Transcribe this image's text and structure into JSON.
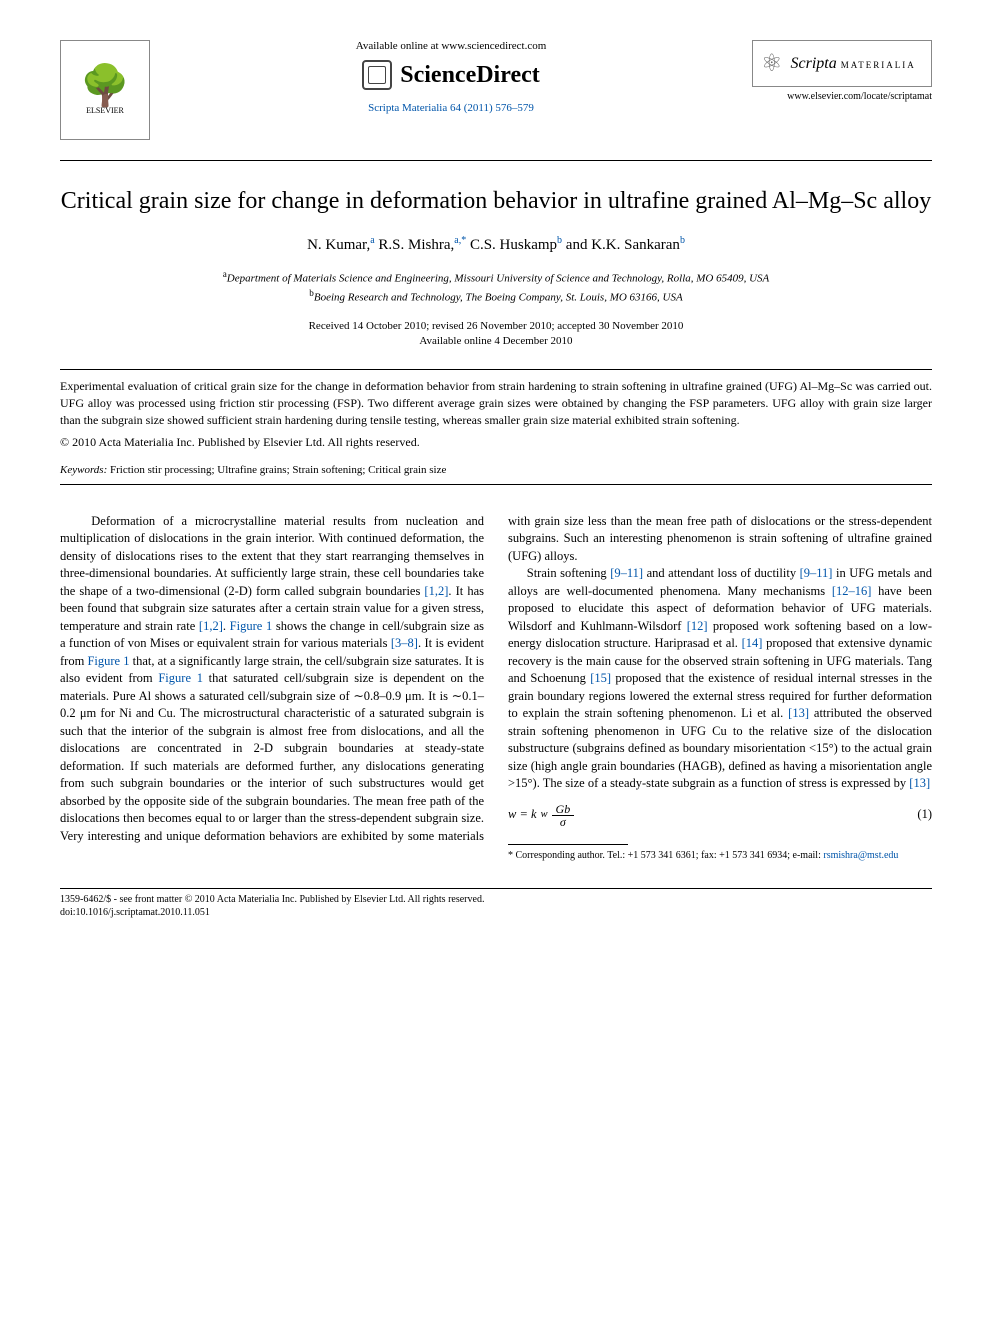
{
  "header": {
    "available_online": "Available online at www.sciencedirect.com",
    "sciencedirect": "ScienceDirect",
    "journal_citation": "Scripta Materialia 64 (2011) 576–579",
    "elsevier_label": "ELSEVIER",
    "scripta_name": "Scripta",
    "scripta_sub": "MATERIALIA",
    "locate_url": "www.elsevier.com/locate/scriptamat"
  },
  "title": "Critical grain size for change in deformation behavior in ultrafine grained Al–Mg–Sc alloy",
  "authors": {
    "a1": "N. Kumar,",
    "a1_sup": "a",
    "a2": " R.S. Mishra,",
    "a2_sup": "a,",
    "a2_ast": "*",
    "a3": " C.S. Huskamp",
    "a3_sup": "b",
    "a4": " and K.K. Sankaran",
    "a4_sup": "b"
  },
  "affiliations": {
    "a": "Department of Materials Science and Engineering, Missouri University of Science and Technology, Rolla, MO 65409, USA",
    "b": "Boeing Research and Technology, The Boeing Company, St. Louis, MO 63166, USA"
  },
  "dates": {
    "received": "Received 14 October 2010; revised 26 November 2010; accepted 30 November 2010",
    "online": "Available online 4 December 2010"
  },
  "abstract": "Experimental evaluation of critical grain size for the change in deformation behavior from strain hardening to strain softening in ultrafine grained (UFG) Al–Mg–Sc was carried out. UFG alloy was processed using friction stir processing (FSP). Two different average grain sizes were obtained by changing the FSP parameters. UFG alloy with grain size larger than the subgrain size showed sufficient strain hardening during tensile testing, whereas smaller grain size material exhibited strain softening.",
  "copyright": "© 2010 Acta Materialia Inc. Published by Elsevier Ltd. All rights reserved.",
  "keywords": {
    "label": "Keywords:",
    "text": " Friction stir processing; Ultrafine grains; Strain softening; Critical grain size"
  },
  "body": {
    "p1a": "Deformation of a microcrystalline material results from nucleation and multiplication of dislocations in the grain interior. With continued deformation, the density of dislocations rises to the extent that they start rearranging themselves in three-dimensional boundaries. At sufficiently large strain, these cell boundaries take the shape of a two-dimensional (2-D) form called subgrain boundaries ",
    "ref1": "[1,2]",
    "p1b": ". It has been found that subgrain size saturates after a certain strain value for a given stress, temperature and strain rate ",
    "ref2": "[1,2]",
    "p1c": ". ",
    "fig1a": "Figure 1",
    "p1d": " shows the change in cell/subgrain size as a function of von Mises or equivalent strain for various materials ",
    "ref3": "[3–8]",
    "p1e": ". It is evident from ",
    "fig1b": "Figure 1",
    "p1f": " that, at a significantly large strain, the cell/subgrain size saturates. It is also evident from ",
    "fig1c": "Figure 1",
    "p1g": " that saturated cell/subgrain size is dependent on the materials. Pure Al shows a saturated cell/subgrain size of ∼0.8–0.9 μm. It is ∼0.1–0.2 μm for Ni and Cu. The microstructural characteristic of a saturated subgrain is such that the interior of the subgrain is almost free from dislocations, and all the dislocations are concentrated in 2-D subgrain boundaries at steady-state deformation. If such materials are deformed further, any dislocations generating from such subgrain boundaries or the interior of such substructures would get absorbed by the opposite side of the subgrain boundaries. The mean free path of the dislocations then becomes equal to or larger than the stress-dependent subgrain size. Very interesting and unique deformation behaviors are exhibited by some materials with grain size less than the mean free path of dislocations or the stress-dependent subgrains. Such an interesting phenomenon is strain softening of ultrafine grained (UFG) alloys.",
    "p2a": "Strain softening ",
    "ref4": "[9–11]",
    "p2b": " and attendant loss of ductility ",
    "ref5": "[9–11]",
    "p2c": " in UFG metals and alloys are well-documented phenomena. Many mechanisms ",
    "ref6": "[12–16]",
    "p2d": " have been proposed to elucidate this aspect of deformation behavior of UFG materials. Wilsdorf and Kuhlmann-Wilsdorf ",
    "ref7": "[12]",
    "p2e": " proposed work softening based on a low-energy dislocation structure. Hariprasad et al. ",
    "ref8": "[14]",
    "p2f": " proposed that extensive dynamic recovery is the main cause for the observed strain softening in UFG materials. Tang and Schoenung ",
    "ref9": "[15]",
    "p2g": " proposed that the existence of residual internal stresses in the grain boundary regions lowered the external stress required for further deformation to explain the strain softening phenomenon. Li et al. ",
    "ref10": "[13]",
    "p2h": " attributed the observed strain softening phenomenon in UFG Cu to the relative size of the dislocation substructure (subgrains defined as boundary misorientation <15°) to the actual grain size (high angle grain boundaries (HAGB), defined as having a misorientation angle >15°). The size of a steady-state subgrain as a function of stress is expressed by ",
    "ref11": "[13]"
  },
  "equation": {
    "lhs": "w = k",
    "sub": "w",
    "num": "Gb",
    "den": "σ",
    "num_label": "(1)"
  },
  "footnote": {
    "marker": "*",
    "text": " Corresponding author. Tel.: +1 573 341 6361; fax: +1 573 341 6934; e-mail: ",
    "email": "rsmishra@mst.edu"
  },
  "footer": {
    "line1": "1359-6462/$ - see front matter © 2010 Acta Materialia Inc. Published by Elsevier Ltd. All rights reserved.",
    "line2": "doi:10.1016/j.scriptamat.2010.11.051"
  }
}
